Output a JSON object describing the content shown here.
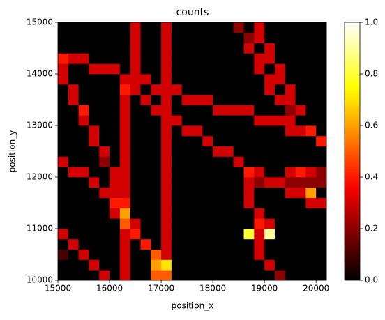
{
  "chart_data": {
    "type": "heatmap",
    "title": "counts",
    "x_label": "position_x",
    "y_label": "position_y",
    "xlim": [
      15000,
      20200
    ],
    "ylim": [
      10000,
      15000
    ],
    "xticks": [
      15000,
      16000,
      17000,
      18000,
      19000,
      20000
    ],
    "yticks": [
      10000,
      11000,
      12000,
      13000,
      14000,
      15000
    ],
    "colormap": "hot",
    "clim": [
      0,
      1
    ],
    "colorbar_ticks": [
      {
        "value": 0,
        "label": "0.0"
      },
      {
        "value": 0.2,
        "label": "0.2"
      },
      {
        "value": 0.4,
        "label": "0.4"
      },
      {
        "value": 0.6,
        "label": "0.6"
      },
      {
        "value": 0.8,
        "label": "0.8"
      },
      {
        "value": 1,
        "label": "1.0"
      }
    ],
    "z": [
      [
        0,
        0,
        0,
        0,
        0.3,
        0,
        0.3,
        0,
        0,
        0.5,
        0.5,
        0,
        0,
        0,
        0,
        0,
        0,
        0,
        0,
        0,
        0,
        0.2,
        0,
        0,
        0,
        0
      ],
      [
        0,
        0,
        0,
        0.3,
        0,
        0,
        0.3,
        0,
        0,
        0.6,
        0.7,
        0,
        0,
        0,
        0,
        0,
        0,
        0,
        0,
        0,
        0.3,
        0,
        0,
        0,
        0,
        0
      ],
      [
        0.1,
        0,
        0.3,
        0,
        0,
        0,
        0.3,
        0,
        0,
        0.5,
        0.3,
        0,
        0,
        0,
        0,
        0,
        0,
        0,
        0,
        0.3,
        0,
        0,
        0,
        0,
        0,
        0
      ],
      [
        0,
        0.3,
        0,
        0,
        0,
        0,
        0.3,
        0,
        0.4,
        0,
        0.3,
        0,
        0,
        0,
        0,
        0,
        0,
        0,
        0,
        0.3,
        0,
        0,
        0,
        0,
        0,
        0
      ],
      [
        0.3,
        0,
        0,
        0,
        0,
        0,
        0.3,
        0.4,
        0,
        0,
        0.3,
        0,
        0,
        0,
        0,
        0,
        0,
        0,
        0.8,
        0.3,
        0.9,
        0,
        0,
        0,
        0,
        0
      ],
      [
        0,
        0,
        0,
        0,
        0,
        0,
        0.5,
        0.3,
        0,
        0,
        0.3,
        0,
        0,
        0,
        0,
        0,
        0,
        0,
        0,
        0.4,
        0.3,
        0,
        0,
        0,
        0,
        0
      ],
      [
        0,
        0,
        0,
        0,
        0,
        0.3,
        0.6,
        0,
        0,
        0,
        0.3,
        0,
        0,
        0,
        0,
        0,
        0,
        0,
        0,
        0.3,
        0,
        0,
        0,
        0,
        0,
        0
      ],
      [
        0,
        0,
        0,
        0,
        0,
        0.4,
        0.4,
        0,
        0,
        0,
        0.3,
        0,
        0,
        0,
        0,
        0,
        0,
        0,
        0.3,
        0,
        0,
        0,
        0,
        0,
        0.3,
        0.3
      ],
      [
        0,
        0,
        0,
        0,
        0.3,
        0.3,
        0.3,
        0,
        0,
        0,
        0.3,
        0,
        0,
        0,
        0,
        0,
        0,
        0,
        0.3,
        0,
        0,
        0,
        0.3,
        0.3,
        0.6,
        0
      ],
      [
        0,
        0,
        0,
        0.3,
        0,
        0.3,
        0.3,
        0,
        0,
        0,
        0.3,
        0,
        0,
        0,
        0,
        0,
        0,
        0,
        0.3,
        0.2,
        0.3,
        0.3,
        0.2,
        0.2,
        0.2,
        0.2
      ],
      [
        0,
        0.3,
        0.3,
        0,
        0,
        0.3,
        0.3,
        0,
        0,
        0,
        0.3,
        0,
        0,
        0,
        0,
        0,
        0,
        0,
        0.4,
        0.3,
        0,
        0,
        0.3,
        0.4,
        0.3,
        0.2
      ],
      [
        0.3,
        0,
        0,
        0,
        0.2,
        0,
        0.3,
        0,
        0,
        0,
        0.3,
        0,
        0,
        0,
        0,
        0,
        0,
        0.3,
        0,
        0,
        0,
        0,
        0,
        0,
        0,
        0
      ],
      [
        0,
        0,
        0,
        0,
        0.3,
        0,
        0.3,
        0,
        0,
        0,
        0.3,
        0,
        0,
        0,
        0,
        0.3,
        0.3,
        0,
        0,
        0,
        0,
        0,
        0,
        0,
        0,
        0
      ],
      [
        0,
        0,
        0,
        0.3,
        0,
        0,
        0.3,
        0,
        0,
        0,
        0.3,
        0,
        0,
        0,
        0.3,
        0,
        0,
        0,
        0,
        0,
        0,
        0,
        0,
        0,
        0,
        0.4
      ],
      [
        0,
        0,
        0,
        0.3,
        0,
        0,
        0.3,
        0,
        0,
        0,
        0.3,
        0,
        0.3,
        0.3,
        0,
        0,
        0,
        0,
        0,
        0,
        0,
        0,
        0.3,
        0.3,
        0.4,
        0
      ],
      [
        0,
        0,
        0.3,
        0,
        0,
        0,
        0.3,
        0,
        0,
        0,
        0.3,
        0.3,
        0,
        0,
        0,
        0,
        0,
        0,
        0,
        0.3,
        0.3,
        0.3,
        0.3,
        0,
        0,
        0
      ],
      [
        0,
        0,
        0.4,
        0,
        0,
        0,
        0.3,
        0,
        0,
        0.3,
        0.3,
        0,
        0,
        0,
        0,
        0.3,
        0.3,
        0.3,
        0.3,
        0,
        0,
        0,
        0.2,
        0.3,
        0,
        0
      ],
      [
        0,
        0.3,
        0,
        0,
        0,
        0,
        0.3,
        0,
        0.3,
        0,
        0.3,
        0,
        0.3,
        0.3,
        0.3,
        0,
        0,
        0,
        0,
        0,
        0,
        0.3,
        0.3,
        0,
        0,
        0
      ],
      [
        0,
        0.3,
        0,
        0,
        0,
        0,
        0.4,
        0.3,
        0,
        0.3,
        0.3,
        0.3,
        0,
        0,
        0,
        0,
        0,
        0,
        0,
        0,
        0.3,
        0,
        0.3,
        0,
        0,
        0
      ],
      [
        0.3,
        0,
        0,
        0,
        0,
        0,
        0.3,
        0.3,
        0.3,
        0,
        0.3,
        0,
        0,
        0,
        0,
        0,
        0,
        0,
        0,
        0,
        0.3,
        0.3,
        0,
        0,
        0,
        0
      ],
      [
        0.3,
        0,
        0,
        0.3,
        0.3,
        0.3,
        0,
        0.3,
        0,
        0,
        0.3,
        0,
        0,
        0,
        0,
        0,
        0,
        0,
        0,
        0.3,
        0,
        0.3,
        0,
        0,
        0,
        0
      ],
      [
        0.4,
        0.3,
        0.3,
        0,
        0,
        0,
        0,
        0.3,
        0,
        0,
        0.3,
        0,
        0,
        0,
        0,
        0,
        0,
        0,
        0,
        0.3,
        0.3,
        0,
        0,
        0,
        0,
        0
      ],
      [
        0,
        0,
        0,
        0,
        0,
        0,
        0,
        0.3,
        0,
        0,
        0.3,
        0,
        0,
        0,
        0,
        0,
        0,
        0,
        0.3,
        0,
        0.3,
        0,
        0,
        0,
        0,
        0
      ],
      [
        0,
        0,
        0,
        0,
        0,
        0,
        0,
        0.3,
        0,
        0,
        0.3,
        0,
        0,
        0,
        0,
        0,
        0,
        0,
        0.2,
        0.3,
        0,
        0,
        0,
        0,
        0,
        0
      ],
      [
        0,
        0,
        0,
        0,
        0,
        0,
        0,
        0.3,
        0,
        0,
        0.3,
        0,
        0,
        0,
        0,
        0,
        0,
        0.2,
        0,
        0.3,
        0,
        0,
        0,
        0,
        0,
        0
      ]
    ]
  }
}
